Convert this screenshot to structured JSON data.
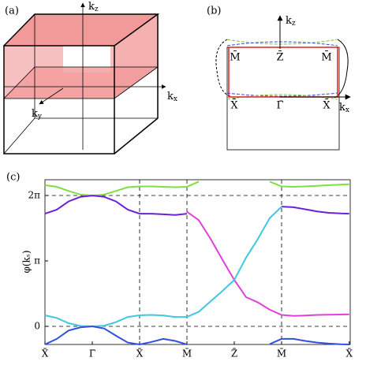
{
  "panel_a": {
    "label": "(a)",
    "kz": {
      "text": "k",
      "sub": "z"
    },
    "kx": {
      "text": "k",
      "sub": "x"
    },
    "ky": {
      "text": "k",
      "sub": "y"
    }
  },
  "panel_b": {
    "label": "(b)",
    "kz": {
      "text": "k",
      "sub": "z"
    },
    "kx": {
      "text": "k",
      "sub": "x"
    },
    "points": [
      "M̄",
      "Z̄",
      "M̄",
      "X̄",
      "Γ̄",
      "X̄"
    ]
  },
  "chart_data": {
    "type": "line",
    "label": "(c)",
    "y_label": "φ(kₛ)",
    "x": [
      0,
      0.25,
      0.5,
      0.75,
      1,
      1.25,
      1.5,
      1.75,
      2,
      2.25,
      2.5,
      2.75,
      3,
      3.25,
      3.5,
      3.75,
      4,
      4.25,
      4.5,
      4.75,
      5,
      5.25,
      5.5,
      5.75,
      6,
      6.25,
      6.43
    ],
    "series": [
      {
        "color": "#7ee040",
        "values": [
          6.78,
          6.7,
          6.5,
          6.33,
          6.28,
          6.33,
          6.5,
          6.68,
          6.72,
          6.72,
          6.7,
          6.68,
          6.7,
          6.95,
          null,
          null,
          null,
          null,
          null,
          6.95,
          6.72,
          6.7,
          6.72,
          6.75,
          6.78,
          6.8,
          6.82
        ]
      },
      {
        "color": "#6a22d8",
        "values": [
          5.41,
          5.6,
          6.0,
          6.22,
          6.28,
          6.22,
          6.0,
          5.6,
          5.41,
          5.41,
          5.38,
          5.35,
          5.41,
          null,
          null,
          null,
          null,
          null,
          null,
          null,
          5.75,
          5.72,
          5.62,
          5.52,
          5.45,
          5.42,
          5.41
        ]
      },
      {
        "color": "#e040d8",
        "values": [
          null,
          null,
          null,
          null,
          null,
          null,
          null,
          null,
          null,
          null,
          null,
          null,
          5.5,
          5.1,
          4.2,
          3.2,
          2.23,
          1.4,
          1.15,
          0.8,
          0.55,
          0.5,
          0.52,
          0.55,
          0.56,
          0.57,
          0.58
        ]
      },
      {
        "color": "#40c8e0",
        "values": [
          0.53,
          0.4,
          0.15,
          0.02,
          0,
          0.03,
          0.2,
          0.45,
          0.53,
          0.55,
          0.52,
          0.45,
          0.45,
          0.7,
          1.2,
          1.7,
          2.23,
          3.3,
          4.2,
          5.2,
          5.75,
          null,
          null,
          null,
          null,
          null,
          null
        ]
      },
      {
        "color": "#3050e0",
        "values": [
          -0.87,
          -0.6,
          -0.2,
          -0.05,
          0,
          -0.1,
          -0.45,
          -0.78,
          -0.87,
          -0.75,
          -0.6,
          -0.7,
          -0.87,
          null,
          null,
          null,
          null,
          null,
          null,
          -0.85,
          -0.6,
          -0.6,
          -0.7,
          -0.78,
          -0.83,
          -0.86,
          -0.87
        ]
      }
    ],
    "xlim": [
      0,
      6.45
    ],
    "ylim": [
      -0.87,
      7.04
    ],
    "xticks": [
      {
        "value": 0,
        "label": "X̄"
      },
      {
        "value": 1,
        "label": "Γ̄"
      },
      {
        "value": 2,
        "label": "X̄"
      },
      {
        "value": 3,
        "label": "M̄"
      },
      {
        "value": 4,
        "label": "Z̄"
      },
      {
        "value": 5,
        "label": "M̄"
      },
      {
        "value": 6.43,
        "label": "X̄"
      }
    ],
    "yticks": [
      0,
      {
        "value": 3.1416,
        "label": "π"
      },
      {
        "value": 6.2832,
        "label": "2π"
      }
    ],
    "vlines": [
      2,
      3,
      5
    ],
    "hlines": [
      0,
      6.2832
    ]
  }
}
